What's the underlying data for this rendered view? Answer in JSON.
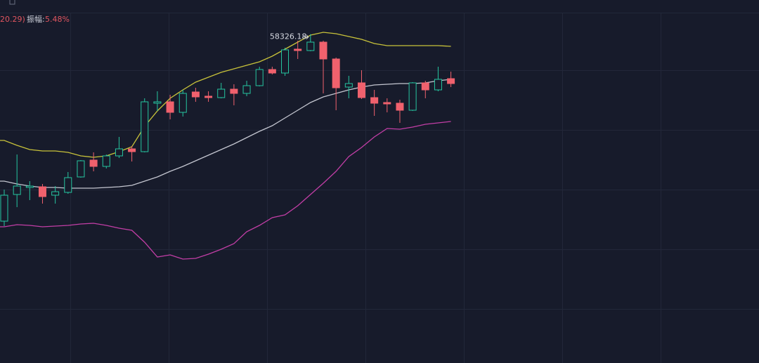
{
  "header": {
    "change": "20.29)",
    "amplitude_label": "振幅:",
    "amplitude": "5.48%"
  },
  "chart_data": {
    "type": "candlestick",
    "categories": [
      null,
      null,
      null,
      null,
      null,
      null,
      null,
      null,
      null,
      null,
      null,
      null,
      null,
      null,
      null,
      null,
      null,
      null,
      null,
      null,
      null,
      null,
      null,
      null,
      null,
      null,
      null,
      null,
      null,
      null,
      null,
      null,
      null,
      null,
      null,
      null
    ],
    "open": [
      53000,
      53760,
      53960,
      53980,
      53740,
      53820,
      54260,
      54740,
      54560,
      54860,
      55060,
      54980,
      56360,
      56400,
      56100,
      56680,
      56560,
      56520,
      56760,
      56640,
      56860,
      57320,
      57220,
      57900,
      57860,
      58100,
      57620,
      56820,
      56940,
      56520,
      56380,
      56360,
      56160,
      56940,
      56740,
      57060
    ],
    "high": [
      53900,
      54900,
      54140,
      54060,
      54000,
      54400,
      54740,
      54960,
      54900,
      55400,
      55140,
      56500,
      56700,
      56600,
      56740,
      56800,
      56700,
      56940,
      56900,
      57000,
      57400,
      57400,
      57940,
      58140,
      58326.18,
      58140,
      57660,
      57140,
      57300,
      56740,
      56500,
      56460,
      56960,
      57000,
      57400,
      57260
    ],
    "low": [
      52860,
      53400,
      53600,
      53500,
      53500,
      53780,
      54240,
      54420,
      54500,
      54800,
      54700,
      54960,
      56140,
      55900,
      55980,
      56400,
      56400,
      56500,
      56300,
      56560,
      56840,
      57180,
      57140,
      57620,
      57840,
      56640,
      56160,
      56500,
      56480,
      56000,
      56100,
      55800,
      56140,
      56500,
      56700,
      56820
    ],
    "close": [
      53740,
      54000,
      54000,
      53700,
      53840,
      54240,
      54720,
      54560,
      54860,
      55060,
      54980,
      56400,
      56400,
      56100,
      56640,
      56540,
      56520,
      56760,
      56640,
      56860,
      57320,
      57220,
      57880,
      57860,
      58100,
      57620,
      56800,
      56920,
      56520,
      56360,
      56340,
      56160,
      56940,
      56740,
      57040,
      56920
    ],
    "up_color": "#26c6a0",
    "down_color": "#f0616d",
    "series": [
      {
        "color": "#c8c23a",
        "values": [
          55300,
          55160,
          55040,
          55000,
          55000,
          54960,
          54860,
          54820,
          54860,
          54980,
          55120,
          55700,
          56140,
          56500,
          56740,
          56960,
          57100,
          57240,
          57340,
          57440,
          57540,
          57700,
          57900,
          58100,
          58300,
          58380,
          58340,
          58260,
          58180,
          58060,
          58000,
          58000,
          58000,
          58000,
          58000,
          57980
        ]
      },
      {
        "color": "#c4c6d0",
        "values": [
          54140,
          54060,
          54000,
          53960,
          53960,
          53940,
          53940,
          53940,
          53960,
          53980,
          54020,
          54140,
          54260,
          54420,
          54560,
          54720,
          54880,
          55040,
          55200,
          55380,
          55560,
          55720,
          55940,
          56160,
          56380,
          56540,
          56640,
          56740,
          56820,
          56880,
          56900,
          56920,
          56920,
          56940,
          57000,
          57040
        ]
      },
      {
        "color": "#c23ea6",
        "values": [
          52840,
          52900,
          52880,
          52840,
          52860,
          52880,
          52920,
          52940,
          52880,
          52800,
          52740,
          52400,
          51980,
          52040,
          51920,
          51940,
          52060,
          52200,
          52360,
          52700,
          52880,
          53100,
          53180,
          53440,
          53760,
          54080,
          54420,
          54840,
          55100,
          55400,
          55640,
          55620,
          55680,
          55760,
          55800,
          55840
        ]
      }
    ],
    "ylim": [
      48960,
      59300
    ],
    "grid": true
  }
}
